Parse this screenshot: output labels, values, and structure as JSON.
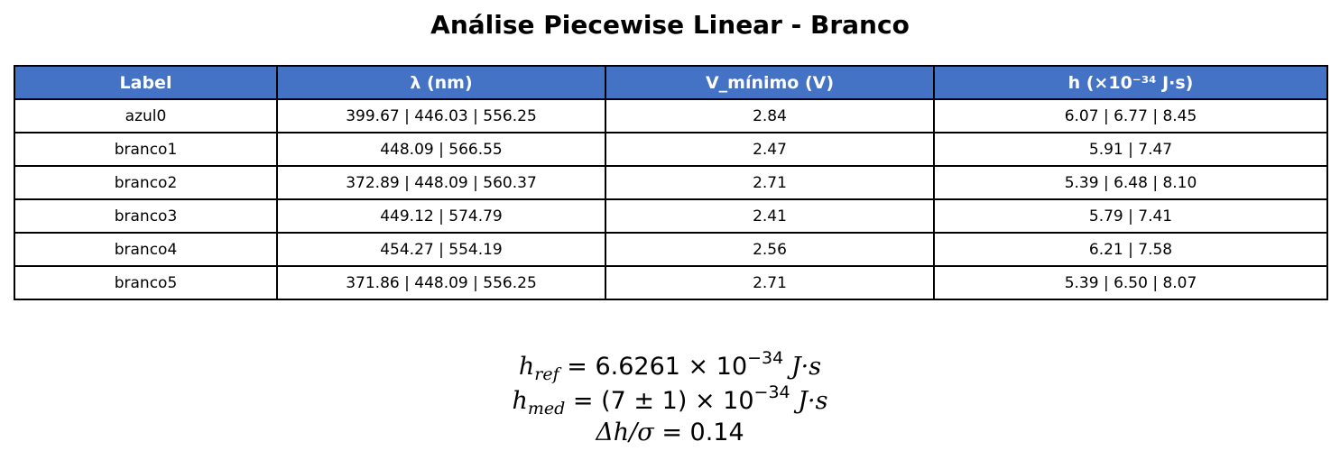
{
  "chart_data": {
    "type": "table",
    "title": "Análise Piecewise Linear - Branco",
    "columns": [
      "Label",
      "λ (nm)",
      "V_mínimo (V)",
      "h (×10⁻³⁴ J·s)"
    ],
    "rows": [
      [
        "azul0",
        "399.67 | 446.03 | 556.25",
        "2.84",
        "6.07 | 6.77 | 8.45"
      ],
      [
        "branco1",
        "448.09 | 566.55",
        "2.47",
        "5.91 | 7.47"
      ],
      [
        "branco2",
        "372.89 | 448.09 | 560.37",
        "2.71",
        "5.39 | 6.48 | 8.10"
      ],
      [
        "branco3",
        "449.12 | 574.79",
        "2.41",
        "5.79 | 7.41"
      ],
      [
        "branco4",
        "454.27 | 554.19",
        "2.56",
        "6.21 | 7.58"
      ],
      [
        "branco5",
        "371.86 | 448.09 | 556.25",
        "2.71",
        "5.39 | 6.50 | 8.07"
      ]
    ],
    "header_color": "#4472c4",
    "annotations": {
      "h_ref": {
        "symbol": "h",
        "sub": "ref",
        "value": "6.6261",
        "times": "×",
        "base": "10",
        "exp": "−34",
        "unit": "J·s"
      },
      "h_med": {
        "symbol": "h",
        "sub": "med",
        "value": "(7 ± 1)",
        "times": "×",
        "base": "10",
        "exp": "−34",
        "unit": "J·s"
      },
      "ratio": {
        "text": "Δh/σ",
        "value": "0.14"
      }
    }
  }
}
